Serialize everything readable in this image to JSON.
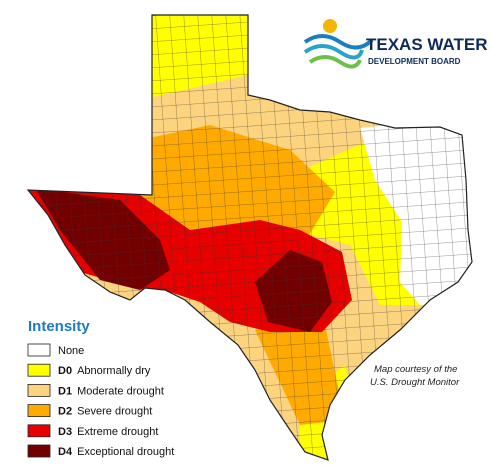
{
  "logo": {
    "title": "TEXAS WATER",
    "subtitle": "DEVELOPMENT BOARD"
  },
  "legend": {
    "title": "Intensity",
    "items": [
      {
        "label": "None",
        "color": "#ffffff"
      },
      {
        "code": "D0",
        "label": "Abnormally dry",
        "color": "#ffff00"
      },
      {
        "code": "D1",
        "label": "Moderate drought",
        "color": "#fcd37f"
      },
      {
        "code": "D2",
        "label": "Severe drought",
        "color": "#ffaa00"
      },
      {
        "code": "D3",
        "label": "Extreme drought",
        "color": "#e60000"
      },
      {
        "code": "D4",
        "label": "Exceptional drought",
        "color": "#730000"
      }
    ]
  },
  "credit": {
    "lines": [
      "Map courtesy of the",
      "U.S. Drought Monitor"
    ]
  }
}
